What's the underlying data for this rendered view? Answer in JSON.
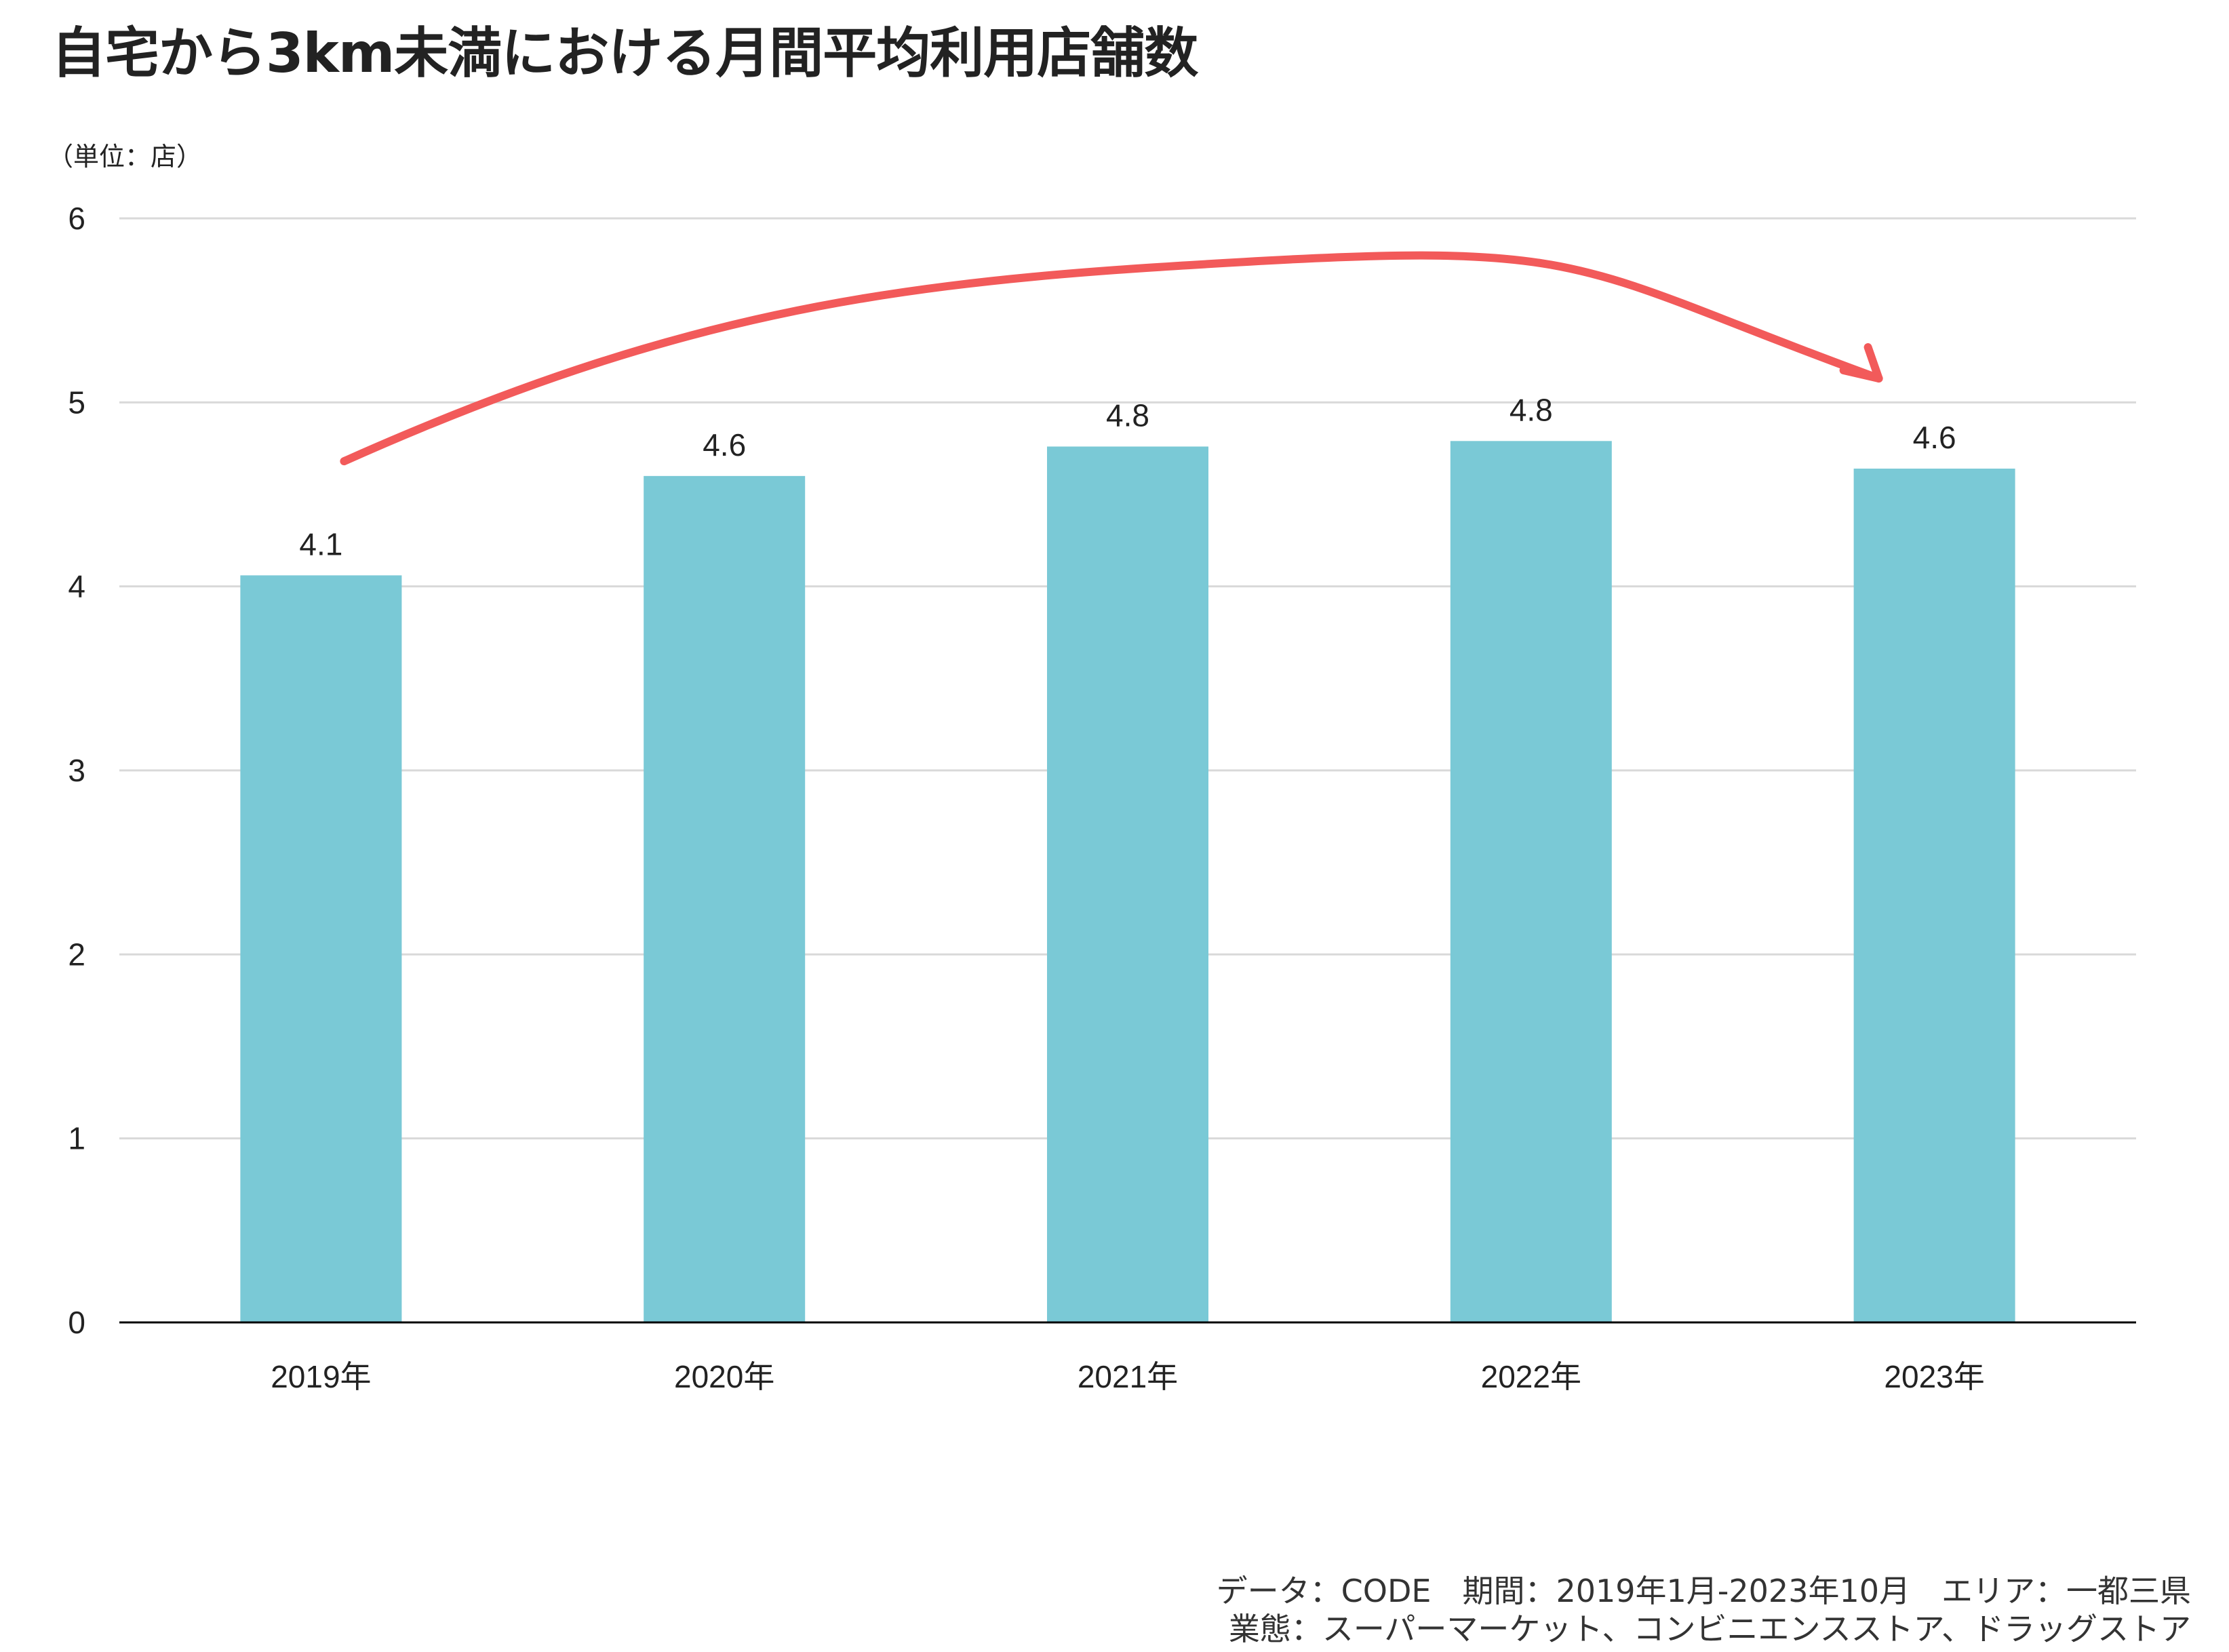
{
  "title": "自宅から3km未満における月間平均利用店舗数",
  "unit_label": "（単位：店）",
  "footer": {
    "line1": "データ：CODE　期間：2019年1月-2023年10月　エリア：一都三県",
    "line2": "業態：スーパーマーケット、コンビニエンスストア、ドラッグストア"
  },
  "colors": {
    "bar": "#7AC9D6",
    "arrow": "#F25A5A",
    "grid": "#D9D9D9",
    "axis": "#000000",
    "text": "#222222"
  },
  "chart_data": {
    "type": "bar",
    "categories": [
      "2019年",
      "2020年",
      "2021年",
      "2022年",
      "2023年"
    ],
    "values": [
      4.06,
      4.6,
      4.76,
      4.79,
      4.64
    ],
    "data_labels": [
      "4.1",
      "4.6",
      "4.8",
      "4.8",
      "4.6"
    ],
    "ylim": [
      0,
      6
    ],
    "yticks": [
      "0",
      "1",
      "2",
      "3",
      "4",
      "5",
      "6"
    ],
    "grid": true,
    "annotation": "curved arrow from 2019年 to 2023年"
  }
}
